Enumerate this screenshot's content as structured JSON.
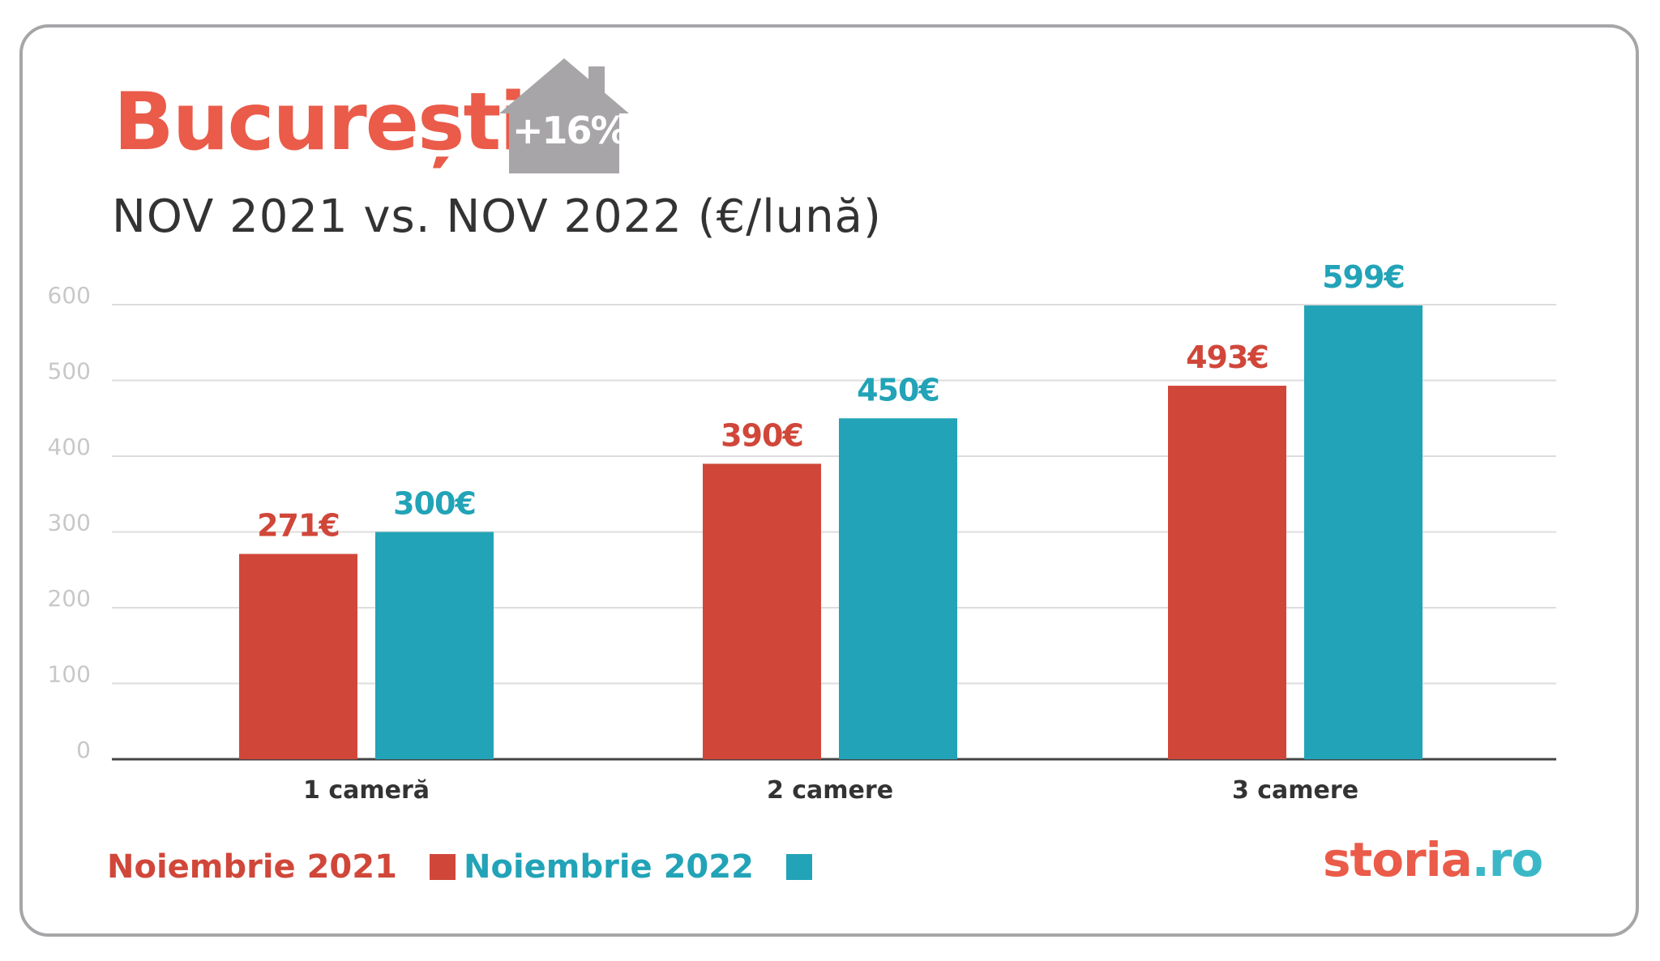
{
  "title": "București",
  "badge": {
    "text": "+16%"
  },
  "subtitle": "NOV 2021 vs. NOV 2022 (€/lună)",
  "colors": {
    "title": "#ea5b49",
    "series_2021": "#d0473a",
    "series_2022": "#22a3b7",
    "badge": "#a7a5a8",
    "axis_ticks": "#c8c8c8",
    "grid": "#dddddd"
  },
  "legend": {
    "item_2021": "Noiembrie 2021",
    "item_2022": "Noiembrie 2022"
  },
  "logo": {
    "part1": "storia",
    "part2": ".ro"
  },
  "chart_data": {
    "type": "bar",
    "title": "",
    "xlabel": "",
    "ylabel": "",
    "categories": [
      "1 cameră",
      "2 camere",
      "3 camere"
    ],
    "series": [
      {
        "name": "Noiembrie 2021",
        "values": [
          271,
          390,
          493
        ],
        "labels": [
          "271€",
          "390€",
          "493€"
        ],
        "color": "#d0473a"
      },
      {
        "name": "Noiembrie 2022",
        "values": [
          300,
          450,
          599
        ],
        "labels": [
          "300€",
          "450€",
          "599€"
        ],
        "color": "#22a3b7"
      }
    ],
    "ylim": [
      0,
      600
    ],
    "yticks": [
      0,
      100,
      200,
      300,
      400,
      500,
      600
    ],
    "grid": true,
    "legend_position": "bottom-left"
  }
}
